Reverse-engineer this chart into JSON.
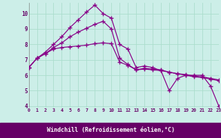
{
  "bg_color": "#cceee8",
  "grid_color": "#aaddcc",
  "line_color": "#880088",
  "axis_label_bg": "#660066",
  "xlabel": "Windchill (Refroidissement éolien,°C)",
  "xlim": [
    0,
    23
  ],
  "ylim": [
    3.9,
    10.7
  ],
  "ytick_vals": [
    4,
    5,
    6,
    7,
    8,
    9,
    10
  ],
  "xtick_vals": [
    0,
    1,
    2,
    3,
    4,
    5,
    6,
    7,
    8,
    9,
    10,
    11,
    12,
    13,
    14,
    15,
    16,
    17,
    18,
    19,
    20,
    21,
    22,
    23
  ],
  "line1": [
    6.5,
    7.1,
    7.5,
    8.0,
    8.5,
    9.1,
    9.6,
    10.1,
    10.55,
    10.0,
    9.7,
    8.0,
    7.7,
    6.5,
    6.6,
    6.5,
    6.3,
    5.0,
    5.8,
    6.0,
    6.0,
    6.0,
    5.3,
    4.0
  ],
  "line2": [
    6.5,
    7.1,
    7.4,
    7.8,
    8.1,
    8.5,
    8.8,
    9.05,
    9.3,
    9.5,
    9.0,
    7.1,
    6.7,
    6.35,
    6.45,
    6.4,
    6.35,
    6.2,
    6.1,
    6.05,
    5.95,
    5.9,
    5.8,
    5.7
  ],
  "line3": [
    6.5,
    7.1,
    7.4,
    7.7,
    7.8,
    7.85,
    7.9,
    7.95,
    8.05,
    8.1,
    8.05,
    6.85,
    6.65,
    6.35,
    6.4,
    6.35,
    6.3,
    6.2,
    6.1,
    6.0,
    5.9,
    5.85,
    5.75,
    5.65
  ]
}
